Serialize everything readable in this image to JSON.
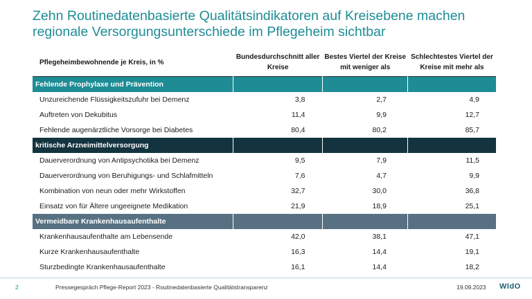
{
  "title": "Zehn Routinedatenbasierte Qualitätsindikatoren auf Kreisebene machen regionale Versorgungsunterschiede im Pflegeheim sichtbar",
  "colors": {
    "title": "#1e8c95",
    "section_colors": [
      "#1e8c95",
      "#13333f",
      "#577182"
    ]
  },
  "table": {
    "headers": [
      "Pflegeheimbewohnende je Kreis, in %",
      "Bundesdurchschnitt aller Kreise",
      "Bestes Viertel der Kreise mit weniger als",
      "Schlechtestes Viertel der Kreise mit mehr als"
    ],
    "sections": [
      {
        "title": "Fehlende Prophylaxe und Prävention",
        "rows": [
          {
            "label": "Unzureichende Flüssigkeitszufuhr bei Demenz",
            "values": [
              "3,8",
              "2,7",
              "4,9"
            ]
          },
          {
            "label": "Auftreten von Dekubitus",
            "values": [
              "11,4",
              "9,9",
              "12,7"
            ]
          },
          {
            "label": "Fehlende augenärztliche Vorsorge bei Diabetes",
            "values": [
              "80,4",
              "80,2",
              "85,7"
            ]
          }
        ]
      },
      {
        "title": "kritische Arzneimittelversorgung",
        "rows": [
          {
            "label": "Dauerverordnung von Antipsychotika bei Demenz",
            "values": [
              "9,5",
              "7,9",
              "11,5"
            ]
          },
          {
            "label": "Dauerverordnung von Beruhigungs- und Schlafmitteln",
            "values": [
              "7,6",
              "4,7",
              "9,9"
            ]
          },
          {
            "label": "Kombination von neun oder mehr Wirkstoffen",
            "values": [
              "32,7",
              "30,0",
              "36,8"
            ]
          },
          {
            "label": "Einsatz von für Ältere ungeeignete Medikation",
            "values": [
              "21,9",
              "18,9",
              "25,1"
            ]
          }
        ]
      },
      {
        "title": "Vermeidbare Krankenhausaufenthalte",
        "rows": [
          {
            "label": "Krankenhausaufenthalte am Lebensende",
            "values": [
              "42,0",
              "38,1",
              "47,1"
            ]
          },
          {
            "label": "Kurze Krankenhausaufenthalte",
            "values": [
              "16,3",
              "14,4",
              "19,1"
            ]
          },
          {
            "label": "Sturzbedingte Krankenhausaufenthalte",
            "values": [
              "16,1",
              "14,4",
              "18,2"
            ]
          }
        ]
      }
    ]
  },
  "footer": {
    "page": "2",
    "text": "Pressegespräch Pflege-Report 2023 - Routinedatenbasierte Qualitätstransparenz",
    "date": "19.09.2023",
    "logo": "WIdO"
  }
}
